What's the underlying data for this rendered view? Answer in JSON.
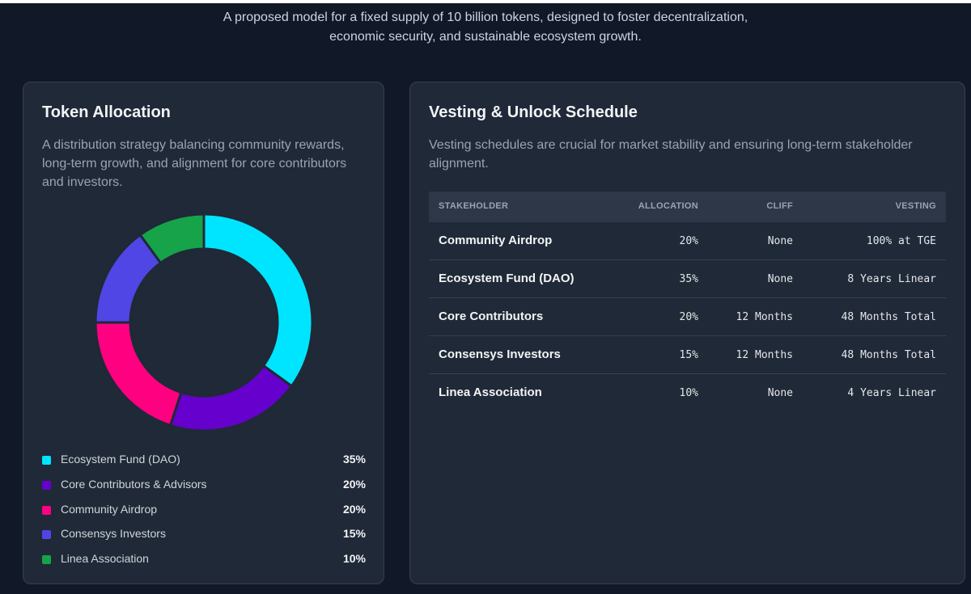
{
  "intro": {
    "line1": "A proposed model for a fixed supply of 10 billion tokens, designed to foster decentralization,",
    "line2": "economic security, and sustainable ecosystem growth."
  },
  "allocation_card": {
    "title": "Token Allocation",
    "description": "A distribution strategy balancing community rewards, long-term growth, and alignment for core contributors and investors."
  },
  "chart_data": {
    "type": "pie",
    "variant": "donut",
    "categories": [
      "Ecosystem Fund (DAO)",
      "Core Contributors & Advisors",
      "Community Airdrop",
      "Consensys Investors",
      "Linea Association"
    ],
    "values": [
      35,
      20,
      20,
      15,
      10
    ],
    "value_labels": [
      "35%",
      "20%",
      "20%",
      "15%",
      "10%"
    ],
    "colors": [
      "#00e5ff",
      "#6600cc",
      "#ff0080",
      "#5046e5",
      "#16a34a"
    ],
    "legend_position": "bottom"
  },
  "vesting_card": {
    "title": "Vesting & Unlock Schedule",
    "description": "Vesting schedules are crucial for market stability and ensuring long-term stakeholder alignment.",
    "headers": {
      "stakeholder": "STAKEHOLDER",
      "allocation": "ALLOCATION",
      "cliff": "CLIFF",
      "vesting": "VESTING"
    },
    "rows": [
      {
        "stakeholder": "Community Airdrop",
        "allocation": "20%",
        "cliff": "None",
        "vesting": "100% at TGE"
      },
      {
        "stakeholder": "Ecosystem Fund (DAO)",
        "allocation": "35%",
        "cliff": "None",
        "vesting": "8 Years Linear"
      },
      {
        "stakeholder": "Core Contributors",
        "allocation": "20%",
        "cliff": "12 Months",
        "vesting": "48 Months Total"
      },
      {
        "stakeholder": "Consensys Investors",
        "allocation": "15%",
        "cliff": "12 Months",
        "vesting": "48 Months Total"
      },
      {
        "stakeholder": "Linea Association",
        "allocation": "10%",
        "cliff": "None",
        "vesting": "4 Years Linear"
      }
    ]
  }
}
